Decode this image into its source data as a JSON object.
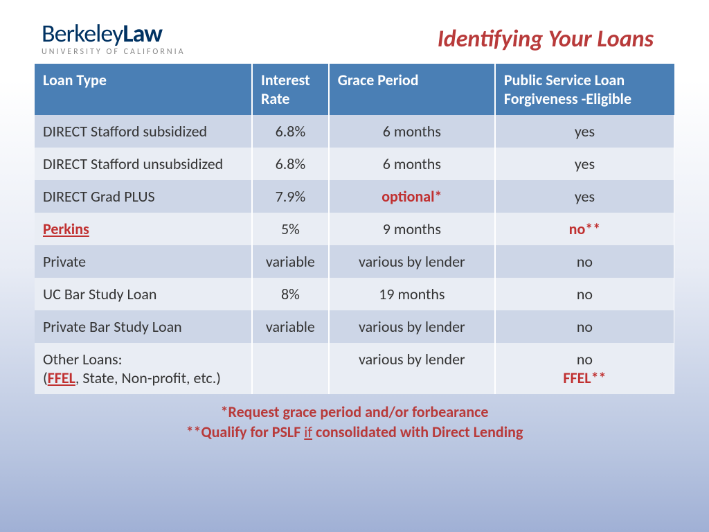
{
  "logo": {
    "main_prefix": "Berkeley",
    "main_suffix": "Law",
    "sub": "UNIVERSITY OF CALIFORNIA"
  },
  "title": "Identifying Your Loans",
  "table": {
    "type": "table",
    "header_bg": "#4a7fb5",
    "header_fg": "#ffffff",
    "row_odd_bg": "#cdd6e7",
    "row_even_bg": "#e9edf4",
    "accent_color": "#c03030",
    "text_color": "#333333",
    "columns": [
      {
        "label": "Loan Type",
        "width": "34%",
        "align": "left"
      },
      {
        "label": "Interest Rate",
        "width": "12%",
        "align": "center"
      },
      {
        "label": "Grace Period",
        "width": "26%",
        "align": "center"
      },
      {
        "label": "Public Service Loan Forgiveness -Eligible",
        "width": "28%",
        "align": "center"
      }
    ],
    "rows": [
      {
        "type": "  DIRECT  Stafford subsidized",
        "rate": "6.8%",
        "grace": "6 months",
        "pslf": "yes"
      },
      {
        "type": "DIRECT  Stafford unsubsidized",
        "rate": "6.8%",
        "grace": "6 months",
        "pslf": "yes"
      },
      {
        "type": "DIRECT Grad PLUS",
        "rate": "7.9%",
        "grace": "optional*",
        "grace_red": true,
        "pslf": "yes"
      },
      {
        "type": "Perkins",
        "type_redlink": true,
        "rate": "5%",
        "grace": "9 months",
        "pslf": "no**",
        "pslf_red": true
      },
      {
        "type": "Private",
        "rate": "variable",
        "grace": "various by lender",
        "pslf": "no"
      },
      {
        "type": "UC Bar Study Loan",
        "rate": "8%",
        "grace": "19 months",
        "pslf": "no"
      },
      {
        "type": "Private Bar Study Loan",
        "rate": "variable",
        "grace": "various by lender",
        "pslf": "no"
      },
      {
        "type_prefix": "Other Loans:",
        "type_redlink_part": "FFEL",
        "type_suffix": ", State, Non-profit, etc.)",
        "type_paren_open": "(",
        "rate": "",
        "grace": "various by lender",
        "pslf": "no",
        "pslf_extra": "FFEL**"
      }
    ]
  },
  "footnotes": {
    "line1": "*Request grace period and/or forbearance",
    "line2_prefix": "**Qualify for PSLF ",
    "line2_if": "if",
    "line2_suffix": " consolidated with Direct Lending"
  }
}
